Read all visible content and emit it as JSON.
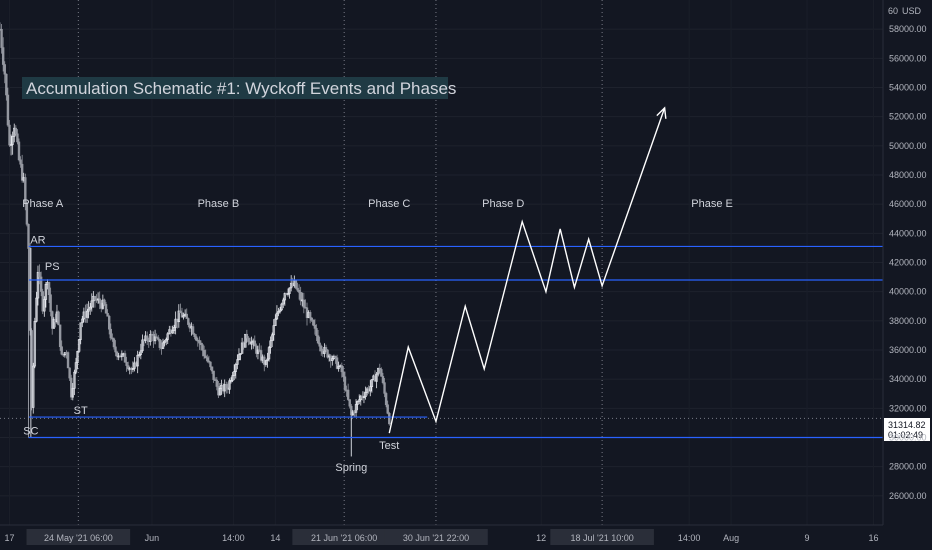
{
  "chart": {
    "title": "Accumulation Schematic #1: Wyckoff Events and Phases",
    "currency_label": "USD",
    "price_label": {
      "price": "31314.82",
      "countdown": "01:02:49"
    },
    "colors": {
      "background": "#131722",
      "range_line": "#2962ff",
      "arrow": "#ffffff",
      "candle": "#d1d4dc",
      "title_bg": "#1f3a44",
      "label_bg": "#2a2e39"
    }
  },
  "chart_data": {
    "type": "candlestick",
    "y_axis": {
      "unit": "USD",
      "ylim": [
        24000,
        60000
      ],
      "ticks": [
        26000,
        28000,
        30000,
        32000,
        34000,
        36000,
        38000,
        40000,
        42000,
        44000,
        46000,
        48000,
        50000,
        52000,
        54000,
        56000,
        58000
      ],
      "tick_labels": [
        "26000.00",
        "28000.00",
        "30000.00",
        "32000.00",
        "34000.00",
        "36000.00",
        "38000.00",
        "40000.00",
        "42000.00",
        "44000.00",
        "46000.00",
        "48000.00",
        "50000.00",
        "52000.00",
        "54000.00",
        "56000.00",
        "58000.00"
      ]
    },
    "x_axis": {
      "range": [
        "2021-05-16",
        "2021-08-17"
      ],
      "ticks": [
        {
          "date": "2021-05-17",
          "label": "17"
        },
        {
          "date": "2021-05-24T06:00",
          "label": "24 May '21   06:00",
          "highlight": true
        },
        {
          "date": "2021-06-01",
          "label": "Jun"
        },
        {
          "date": "2021-06-09T14:00",
          "label": "14:00"
        },
        {
          "date": "2021-06-14",
          "label": "14"
        },
        {
          "date": "2021-06-21T06:00",
          "label": "21 Jun '21   06:00",
          "highlight": true
        },
        {
          "date": "2021-06-30T22:00",
          "label": "30 Jun '21   22:00",
          "highlight": true
        },
        {
          "date": "2021-07-12",
          "label": "12"
        },
        {
          "date": "2021-07-18T10:00",
          "label": "18 Jul '21   10:00",
          "highlight": true
        },
        {
          "date": "2021-07-27T14:00",
          "label": "14:00"
        },
        {
          "date": "2021-08-01",
          "label": "Aug"
        },
        {
          "date": "2021-08-09",
          "label": "9"
        },
        {
          "date": "2021-08-16",
          "label": "16"
        }
      ]
    },
    "vertical_markers": [
      "2021-05-24T06:00",
      "2021-06-21T06:00",
      "2021-06-30T22:00",
      "2021-07-18T10:00"
    ],
    "range_lines": [
      {
        "price": 43100,
        "from": "2021-05-19",
        "to": "2021-08-17"
      },
      {
        "price": 40800,
        "from": "2021-05-19",
        "to": "2021-08-17"
      },
      {
        "price": 31400,
        "from": "2021-05-19",
        "to": "2021-06-30"
      },
      {
        "price": 30000,
        "from": "2021-05-19",
        "to": "2021-08-17"
      }
    ],
    "crosshair_price": 31314.82,
    "phases": [
      {
        "label": "Phase A",
        "date": "2021-05-20T12:00",
        "price": 45800
      },
      {
        "label": "Phase B",
        "date": "2021-06-08",
        "price": 45800
      },
      {
        "label": "Phase C",
        "date": "2021-06-26",
        "price": 45800
      },
      {
        "label": "Phase D",
        "date": "2021-07-08",
        "price": 45800
      },
      {
        "label": "Phase E",
        "date": "2021-07-30",
        "price": 45800
      }
    ],
    "events": [
      {
        "label": "AR",
        "date": "2021-05-20",
        "price": 43300
      },
      {
        "label": "PS",
        "date": "2021-05-21T12:00",
        "price": 41500
      },
      {
        "label": "ST",
        "date": "2021-05-24T12:00",
        "price": 31600
      },
      {
        "label": "SC",
        "date": "2021-05-19T06:00",
        "price": 30200
      },
      {
        "label": "Spring",
        "date": "2021-06-22",
        "price": 27700
      },
      {
        "label": "Test",
        "date": "2021-06-26",
        "price": 29200
      }
    ],
    "projection_path": [
      {
        "date": "2021-06-26",
        "price": 30300
      },
      {
        "date": "2021-06-28",
        "price": 36200
      },
      {
        "date": "2021-06-30T22:00",
        "price": 31100
      },
      {
        "date": "2021-07-04",
        "price": 39000
      },
      {
        "date": "2021-07-06",
        "price": 34700
      },
      {
        "date": "2021-07-10",
        "price": 44800
      },
      {
        "date": "2021-07-12T12:00",
        "price": 40000
      },
      {
        "date": "2021-07-14",
        "price": 44300
      },
      {
        "date": "2021-07-15T12:00",
        "price": 40300
      },
      {
        "date": "2021-07-17",
        "price": 43600
      },
      {
        "date": "2021-07-18T10:00",
        "price": 40400
      },
      {
        "date": "2021-07-25",
        "price": 52600
      }
    ],
    "price_path": [
      {
        "date": "2021-05-16",
        "price": 58000
      },
      {
        "date": "2021-05-16T12:00",
        "price": 55000
      },
      {
        "date": "2021-05-17",
        "price": 50000
      },
      {
        "date": "2021-05-17T12:00",
        "price": 51500
      },
      {
        "date": "2021-05-18",
        "price": 49000
      },
      {
        "date": "2021-05-18T12:00",
        "price": 47500
      },
      {
        "date": "2021-05-19",
        "price": 43000
      },
      {
        "date": "2021-05-19T08:00",
        "price": 31800
      },
      {
        "date": "2021-05-19T16:00",
        "price": 38000
      },
      {
        "date": "2021-05-20",
        "price": 41500
      },
      {
        "date": "2021-05-20T12:00",
        "price": 39000
      },
      {
        "date": "2021-05-21",
        "price": 41000
      },
      {
        "date": "2021-05-21T12:00",
        "price": 37500
      },
      {
        "date": "2021-05-22",
        "price": 38500
      },
      {
        "date": "2021-05-22T12:00",
        "price": 35500
      },
      {
        "date": "2021-05-23",
        "price": 36000
      },
      {
        "date": "2021-05-23T12:00",
        "price": 33000
      },
      {
        "date": "2021-05-24",
        "price": 35000
      },
      {
        "date": "2021-05-24T12:00",
        "price": 38000
      },
      {
        "date": "2021-05-25",
        "price": 38500
      },
      {
        "date": "2021-05-26",
        "price": 39500
      },
      {
        "date": "2021-05-27",
        "price": 39000
      },
      {
        "date": "2021-05-28",
        "price": 36000
      },
      {
        "date": "2021-05-29",
        "price": 35500
      },
      {
        "date": "2021-05-30",
        "price": 34500
      },
      {
        "date": "2021-05-31",
        "price": 36500
      },
      {
        "date": "2021-06-01",
        "price": 37000
      },
      {
        "date": "2021-06-02",
        "price": 36200
      },
      {
        "date": "2021-06-03",
        "price": 37500
      },
      {
        "date": "2021-06-04",
        "price": 38500
      },
      {
        "date": "2021-06-05",
        "price": 37800
      },
      {
        "date": "2021-06-06",
        "price": 36500
      },
      {
        "date": "2021-06-07",
        "price": 35000
      },
      {
        "date": "2021-06-08",
        "price": 33200
      },
      {
        "date": "2021-06-09",
        "price": 33500
      },
      {
        "date": "2021-06-10",
        "price": 35500
      },
      {
        "date": "2021-06-11",
        "price": 37000
      },
      {
        "date": "2021-06-12",
        "price": 36000
      },
      {
        "date": "2021-06-13",
        "price": 35000
      },
      {
        "date": "2021-06-14",
        "price": 38000
      },
      {
        "date": "2021-06-15",
        "price": 40000
      },
      {
        "date": "2021-06-16",
        "price": 40500
      },
      {
        "date": "2021-06-17",
        "price": 39000
      },
      {
        "date": "2021-06-18",
        "price": 37500
      },
      {
        "date": "2021-06-19",
        "price": 36000
      },
      {
        "date": "2021-06-20",
        "price": 35500
      },
      {
        "date": "2021-06-21",
        "price": 34500
      },
      {
        "date": "2021-06-22",
        "price": 31500
      },
      {
        "date": "2021-06-23",
        "price": 32800
      },
      {
        "date": "2021-06-24",
        "price": 33500
      },
      {
        "date": "2021-06-25",
        "price": 34800
      },
      {
        "date": "2021-06-26",
        "price": 31200
      }
    ]
  }
}
